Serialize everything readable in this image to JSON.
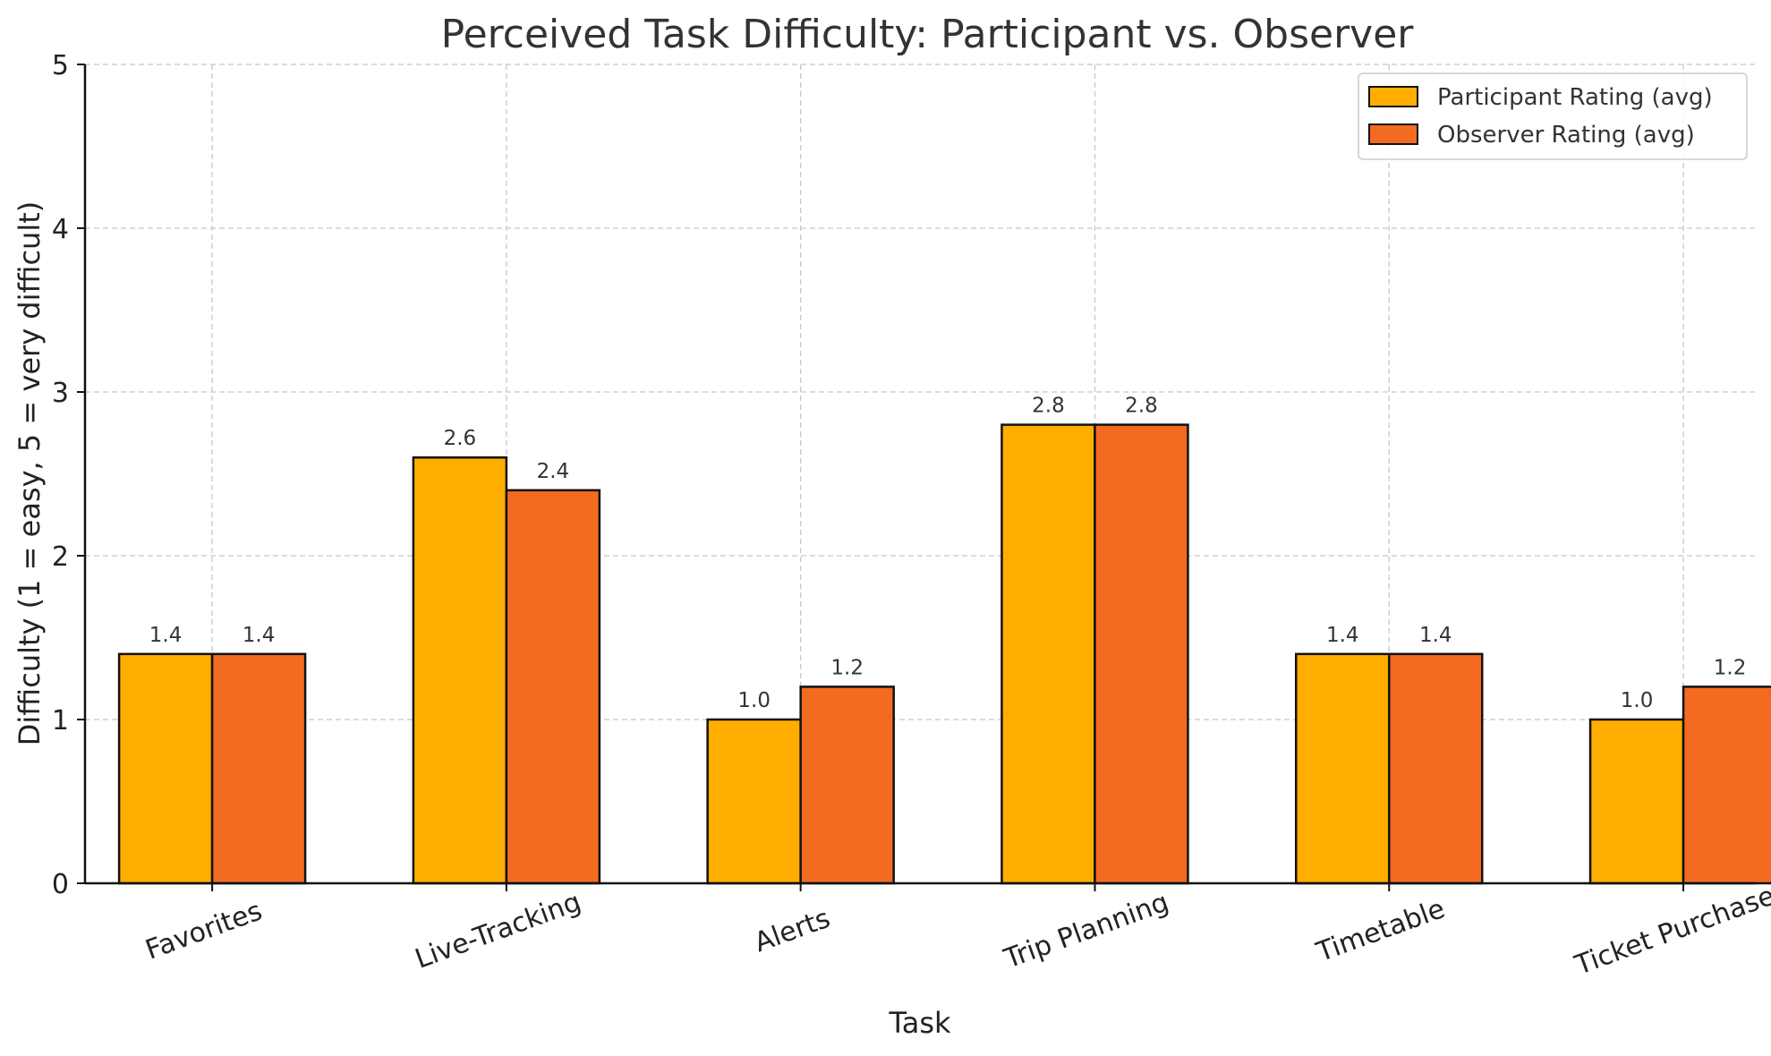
{
  "chart_data": {
    "type": "bar",
    "title": "Perceived Task Difficulty: Participant vs. Observer",
    "xlabel": "Task",
    "ylabel": "Difficulty (1 = easy, 5 = very difficult)",
    "ylim": [
      0,
      5
    ],
    "yticks": [
      "0",
      "1",
      "2",
      "3",
      "4",
      "5"
    ],
    "grid": true,
    "legend_position": "top-right",
    "categories": [
      "Favorites",
      "Live-Tracking",
      "Alerts",
      "Trip Planning",
      "Timetable",
      "Ticket Purchase"
    ],
    "series": [
      {
        "name": "Participant Rating (avg)",
        "color": "#FFAE00",
        "values": [
          1.4,
          2.6,
          1.0,
          2.8,
          1.4,
          1.0
        ],
        "labels": [
          "1.4",
          "2.6",
          "1.0",
          "2.8",
          "1.4",
          "1.0"
        ]
      },
      {
        "name": "Observer Rating (avg)",
        "color": "#F26B21",
        "values": [
          1.4,
          2.4,
          1.2,
          2.8,
          1.4,
          1.2
        ],
        "labels": [
          "1.4",
          "2.4",
          "1.2",
          "2.8",
          "1.4",
          "1.2"
        ]
      }
    ]
  }
}
